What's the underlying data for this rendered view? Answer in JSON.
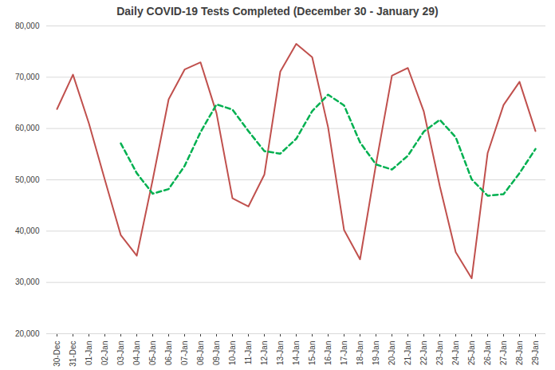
{
  "chart_data": {
    "type": "line",
    "title": "Daily COVID-19 Tests Completed (December 30 - January 29)",
    "categories": [
      "30-Dec",
      "31-Dec",
      "01-Jan",
      "02-Jan",
      "03-Jan",
      "04-Jan",
      "05-Jan",
      "06-Jan",
      "07-Jan",
      "08-Jan",
      "09-Jan",
      "10-Jan",
      "11-Jan",
      "12-Jan",
      "13-Jan",
      "14-Jan",
      "15-Jan",
      "16-Jan",
      "17-Jan",
      "18-Jan",
      "19-Jan",
      "20-Jan",
      "21-Jan",
      "22-Jan",
      "23-Jan",
      "24-Jan",
      "25-Jan",
      "26-Jan",
      "27-Jan",
      "28-Jan",
      "29-Jan"
    ],
    "series": [
      {
        "color": "#c0504d",
        "line_style": "solid",
        "values": [
          63800,
          70500,
          61000,
          50000,
          39200,
          35200,
          50000,
          65700,
          71500,
          72900,
          63000,
          46400,
          44800,
          51000,
          71100,
          76500,
          73900,
          60200,
          40200,
          34500,
          53000,
          70300,
          71800,
          63300,
          48800,
          35900,
          30800,
          55200,
          64600,
          69100,
          59500
        ]
      },
      {
        "color": "#00b050",
        "line_style": "dashed",
        "values": [
          null,
          null,
          null,
          null,
          57100,
          51300,
          47300,
          48200,
          52700,
          59300,
          64700,
          63700,
          59500,
          55600,
          55100,
          58000,
          63400,
          66600,
          64500,
          57300,
          53000,
          52000,
          54700,
          59400,
          61700,
          58300,
          50100,
          46900,
          47200,
          51300,
          56000
        ]
      }
    ],
    "ylim": [
      20000,
      80000
    ],
    "yticks": [
      {
        "value": 20000,
        "label": "20,000"
      },
      {
        "value": 30000,
        "label": "30,000"
      },
      {
        "value": 40000,
        "label": "40,000"
      },
      {
        "value": 50000,
        "label": "50,000"
      },
      {
        "value": 60000,
        "label": "60,000"
      },
      {
        "value": 70000,
        "label": "70,000"
      },
      {
        "value": 80000,
        "label": "80,000"
      }
    ],
    "grid": true
  }
}
